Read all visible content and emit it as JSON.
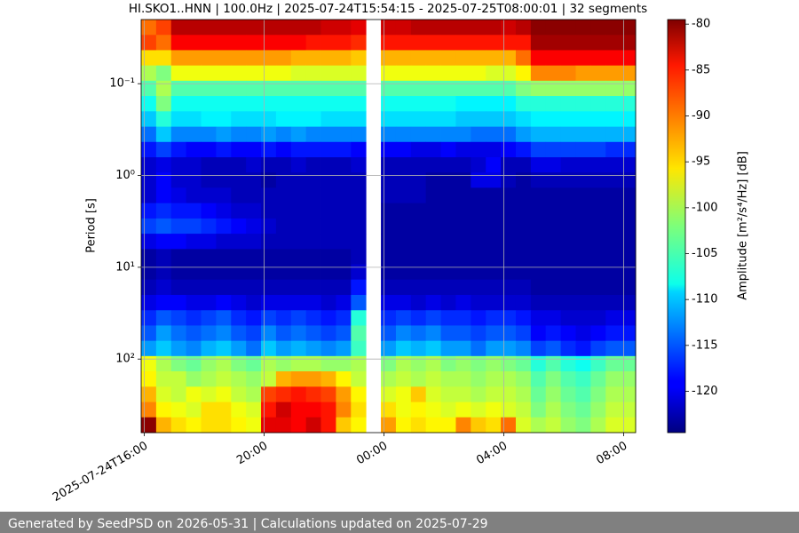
{
  "chart_data": {
    "type": "heatmap",
    "title": "HI.SKO1..HNN | 100.0Hz | 2025-07-24T15:54:15 - 2025-07-25T08:00:01 | 32 segments",
    "y_label": "Period [s]",
    "colorbar_label": "Amplitude [m²/s⁴/Hz] [dB]",
    "colormap": "jet",
    "ylog": true,
    "yinverted": true,
    "grid": true,
    "x": [
      "2025-07-24T15:54",
      "2025-07-24T16:24",
      "2025-07-24T16:54",
      "2025-07-24T17:24",
      "2025-07-24T17:54",
      "2025-07-24T18:24",
      "2025-07-24T18:54",
      "2025-07-24T19:24",
      "2025-07-24T19:54",
      "2025-07-24T20:24",
      "2025-07-24T20:54",
      "2025-07-24T21:24",
      "2025-07-24T21:54",
      "2025-07-24T22:24",
      "2025-07-24T22:54",
      "2025-07-24T23:24",
      "2025-07-24T23:54",
      "2025-07-25T00:24",
      "2025-07-25T00:54",
      "2025-07-25T01:24",
      "2025-07-25T01:54",
      "2025-07-25T02:24",
      "2025-07-25T02:54",
      "2025-07-25T03:24",
      "2025-07-25T03:54",
      "2025-07-25T04:24",
      "2025-07-25T04:54",
      "2025-07-25T05:24",
      "2025-07-25T05:54",
      "2025-07-25T06:24",
      "2025-07-25T06:54",
      "2025-07-25T07:24",
      "2025-07-25T07:54",
      "2025-07-25T08:24"
    ],
    "xlim": [
      "2025-07-24T15:54",
      "2025-07-25T08:24"
    ],
    "xticks": [
      {
        "value": "2025-07-24T16:00",
        "label": "2025-07-24T16:00"
      },
      {
        "value": "2025-07-24T20:00",
        "label": "20:00"
      },
      {
        "value": "2025-07-25T00:00",
        "label": "00:00"
      },
      {
        "value": "2025-07-25T04:00",
        "label": "04:00"
      },
      {
        "value": "2025-07-25T08:00",
        "label": "08:00"
      }
    ],
    "y": [
      0.02,
      0.0294,
      0.0431,
      0.0633,
      0.0928,
      0.136,
      0.2,
      0.294,
      0.431,
      0.633,
      0.928,
      1.36,
      2,
      2.94,
      4.31,
      6.33,
      9.28,
      13.6,
      20,
      29.4,
      43.1,
      63.3,
      92.8,
      136,
      200,
      294,
      431,
      633
    ],
    "ylim": [
      0.02,
      633
    ],
    "yticks": [
      {
        "value": 0.1,
        "label": "10⁻¹"
      },
      {
        "value": 1,
        "label": "10⁰"
      },
      {
        "value": 10,
        "label": "10¹"
      },
      {
        "value": 100,
        "label": "10²"
      }
    ],
    "clim": [
      -124.5,
      -79.5
    ],
    "cticks": [
      -80,
      -85,
      -90,
      -95,
      -100,
      -105,
      -110,
      -115,
      -120
    ],
    "z": [
      [
        -90,
        -88,
        -82,
        -82,
        -82,
        -82,
        -82,
        -82,
        -82,
        -82,
        -82,
        -82,
        -83,
        -83,
        -84,
        null,
        -83,
        -83,
        -82,
        -82,
        -82,
        -82,
        -82,
        -82,
        -83,
        -82,
        -80,
        -80,
        -80,
        -80,
        -80,
        -80,
        -80
      ],
      [
        -88,
        -90,
        -85,
        -85,
        -85,
        -85,
        -85,
        -85,
        -85,
        -85,
        -85,
        -86,
        -86,
        -86,
        -87,
        null,
        -86,
        -86,
        -86,
        -86,
        -86,
        -86,
        -86,
        -86,
        -86,
        -86,
        -81,
        -81,
        -81,
        -81,
        -81,
        -81,
        -81
      ],
      [
        -95,
        -95,
        -92,
        -92,
        -92,
        -92,
        -92,
        -92,
        -92,
        -92,
        -93,
        -93,
        -93,
        -93,
        -94,
        null,
        -93,
        -93,
        -93,
        -93,
        -93,
        -93,
        -93,
        -93,
        -93,
        -90,
        -85,
        -85,
        -85,
        -85,
        -85,
        -85,
        -85
      ],
      [
        -100,
        -102,
        -97,
        -97,
        -97,
        -97,
        -97,
        -97,
        -97,
        -97,
        -98,
        -98,
        -98,
        -98,
        -98,
        null,
        -97,
        -97,
        -97,
        -97,
        -97,
        -97,
        -97,
        -98,
        -98,
        -96,
        -91,
        -91,
        -91,
        -92,
        -92,
        -92,
        -92
      ],
      [
        -104,
        -100,
        -104,
        -104,
        -104,
        -104,
        -104,
        -104,
        -104,
        -104,
        -104,
        -104,
        -104,
        -104,
        -104,
        null,
        -104,
        -104,
        -104,
        -104,
        -104,
        -104,
        -104,
        -104,
        -104,
        -102,
        -101,
        -101,
        -101,
        -101,
        -101,
        -101,
        -101
      ],
      [
        -107,
        -102,
        -107,
        -107,
        -107,
        -107,
        -107,
        -107,
        -107,
        -107,
        -107,
        -107,
        -107,
        -107,
        -107,
        null,
        -107,
        -107,
        -107,
        -107,
        -107,
        -108,
        -108,
        -108,
        -108,
        -106,
        -106,
        -106,
        -106,
        -106,
        -106,
        -106,
        -106
      ],
      [
        -110,
        -106,
        -109,
        -109,
        -108,
        -108,
        -109,
        -109,
        -109,
        -108,
        -108,
        -108,
        -109,
        -109,
        -109,
        null,
        -109,
        -109,
        -109,
        -109,
        -109,
        -110,
        -110,
        -110,
        -110,
        -109,
        -108,
        -108,
        -108,
        -108,
        -108,
        -108,
        -108
      ],
      [
        -114,
        -110,
        -113,
        -113,
        -113,
        -112,
        -113,
        -113,
        -112,
        -113,
        -112,
        -113,
        -113,
        -113,
        -113,
        null,
        -113,
        -113,
        -113,
        -113,
        -113,
        -113,
        -114,
        -114,
        -114,
        -112,
        -111,
        -111,
        -111,
        -111,
        -111,
        -111,
        -111
      ],
      [
        -118,
        -116,
        -118,
        -119,
        -119,
        -118,
        -119,
        -119,
        -118,
        -119,
        -118,
        -118,
        -118,
        -118,
        -119,
        null,
        -119,
        -119,
        -120,
        -120,
        -119,
        -120,
        -120,
        -120,
        -119,
        -118,
        -116,
        -116,
        -116,
        -116,
        -116,
        -117,
        -117
      ],
      [
        -121,
        -120,
        -121,
        -121,
        -122,
        -122,
        -122,
        -121,
        -122,
        -122,
        -121,
        -122,
        -122,
        -122,
        -121,
        null,
        -122,
        -122,
        -122,
        -122,
        -122,
        -122,
        -121,
        -119,
        -122,
        -122,
        -120,
        -120,
        -121,
        -121,
        -121,
        -121,
        -121
      ],
      [
        -121,
        -119,
        -121,
        -121,
        -122,
        -122,
        -122,
        -122,
        -123,
        -122,
        -122,
        -122,
        -122,
        -122,
        -122,
        null,
        -122,
        -122,
        -122,
        -123,
        -123,
        -123,
        -120,
        -120,
        -122,
        -123,
        -122,
        -122,
        -122,
        -122,
        -122,
        -122,
        -122
      ],
      [
        -121,
        -119,
        -120,
        -121,
        -121,
        -121,
        -122,
        -122,
        -122,
        -122,
        -122,
        -122,
        -122,
        -122,
        -122,
        null,
        -122,
        -122,
        -122,
        -123,
        -123,
        -123,
        -123,
        -123,
        -123,
        -123,
        -123,
        -123,
        -123,
        -123,
        -123,
        -123,
        -123
      ],
      [
        -118,
        -117,
        -118,
        -118,
        -119,
        -120,
        -121,
        -121,
        -122,
        -122,
        -122,
        -122,
        -122,
        -122,
        -122,
        null,
        -123,
        -123,
        -123,
        -123,
        -123,
        -123,
        -123,
        -123,
        -123,
        -123,
        -123,
        -123,
        -123,
        -123,
        -123,
        -123,
        -123
      ],
      [
        -116,
        -115,
        -116,
        -116,
        -117,
        -118,
        -119,
        -120,
        -121,
        -122,
        -122,
        -122,
        -122,
        -122,
        -122,
        null,
        -123,
        -123,
        -123,
        -123,
        -123,
        -123,
        -123,
        -123,
        -123,
        -123,
        -123,
        -123,
        -123,
        -123,
        -123,
        -123,
        -123
      ],
      [
        -120,
        -119,
        -119,
        -120,
        -120,
        -121,
        -121,
        -121,
        -122,
        -122,
        -122,
        -122,
        -122,
        -122,
        -122,
        null,
        -123,
        -123,
        -123,
        -123,
        -123,
        -123,
        -123,
        -123,
        -123,
        -123,
        -123,
        -123,
        -123,
        -123,
        -123,
        -123,
        -123
      ],
      [
        -123,
        -122,
        -123,
        -123,
        -123,
        -123,
        -123,
        -123,
        -123,
        -123,
        -123,
        -123,
        -123,
        -123,
        -122,
        null,
        -123,
        -123,
        -123,
        -123,
        -123,
        -123,
        -123,
        -123,
        -123,
        -123,
        -123,
        -123,
        -123,
        -123,
        -123,
        -123,
        -123
      ],
      [
        -123,
        -122,
        -123,
        -123,
        -123,
        -123,
        -123,
        -123,
        -123,
        -123,
        -123,
        -123,
        -123,
        -123,
        -121,
        null,
        -123,
        -123,
        -123,
        -123,
        -123,
        -123,
        -123,
        -123,
        -123,
        -123,
        -123,
        -123,
        -123,
        -123,
        -123,
        -123,
        -123
      ],
      [
        -122,
        -121,
        -122,
        -122,
        -122,
        -122,
        -122,
        -122,
        -122,
        -122,
        -122,
        -122,
        -122,
        -122,
        -118,
        null,
        -122,
        -122,
        -122,
        -122,
        -122,
        -122,
        -122,
        -122,
        -122,
        -122,
        -123,
        -123,
        -123,
        -123,
        -123,
        -123,
        -123
      ],
      [
        -120,
        -119,
        -119,
        -120,
        -120,
        -119,
        -120,
        -121,
        -120,
        -120,
        -120,
        -120,
        -121,
        -120,
        -115,
        null,
        -120,
        -120,
        -121,
        -120,
        -121,
        -120,
        -121,
        -121,
        -121,
        -121,
        -122,
        -122,
        -122,
        -122,
        -122,
        -122,
        -122
      ],
      [
        -117,
        -115,
        -116,
        -117,
        -116,
        -115,
        -117,
        -118,
        -116,
        -117,
        -116,
        -117,
        -118,
        -117,
        -106,
        null,
        -117,
        -116,
        -117,
        -116,
        -117,
        -117,
        -118,
        -117,
        -117,
        -118,
        -120,
        -120,
        -121,
        -121,
        -121,
        -120,
        -120
      ],
      [
        -115,
        -112,
        -114,
        -115,
        -114,
        -113,
        -115,
        -116,
        -113,
        -115,
        -114,
        -115,
        -116,
        -115,
        -104,
        null,
        -115,
        -113,
        -114,
        -113,
        -115,
        -115,
        -116,
        -115,
        -115,
        -116,
        -119,
        -118,
        -119,
        -120,
        -119,
        -118,
        -118
      ],
      [
        -112,
        -110,
        -112,
        -113,
        -111,
        -110,
        -112,
        -114,
        -110,
        -112,
        -111,
        -112,
        -113,
        -112,
        -105,
        null,
        -112,
        -110,
        -111,
        -110,
        -112,
        -112,
        -114,
        -112,
        -112,
        -113,
        -116,
        -115,
        -117,
        -118,
        -116,
        -115,
        -115
      ],
      [
        -97,
        -100,
        -102,
        -103,
        -101,
        -100,
        -102,
        -103,
        -100,
        -101,
        -100,
        -100,
        -101,
        -101,
        -100,
        null,
        -102,
        -100,
        -101,
        -100,
        -102,
        -101,
        -102,
        -101,
        -102,
        -103,
        -106,
        -104,
        -106,
        -107,
        -105,
        -103,
        -103
      ],
      [
        -96,
        -99,
        -99,
        -101,
        -100,
        -99,
        -100,
        -101,
        -99,
        -93,
        -92,
        -92,
        -93,
        -96,
        -99,
        null,
        -100,
        -99,
        -100,
        -99,
        -100,
        -100,
        -101,
        -100,
        -100,
        -101,
        -104,
        -102,
        -104,
        -105,
        -103,
        -101,
        -101
      ],
      [
        -93,
        -98,
        -99,
        -97,
        -98,
        -97,
        -99,
        -100,
        -88,
        -87,
        -86,
        -87,
        -88,
        -92,
        -96,
        null,
        -98,
        -97,
        -94,
        -98,
        -99,
        -99,
        -100,
        -99,
        -99,
        -100,
        -103,
        -101,
        -103,
        -104,
        -102,
        -100,
        -100
      ],
      [
        -91,
        -96,
        -97,
        -98,
        -95,
        -95,
        -97,
        -98,
        -86,
        -83,
        -85,
        -85,
        -86,
        -91,
        -95,
        null,
        -95,
        -97,
        -96,
        -97,
        -98,
        -97,
        -98,
        -97,
        -98,
        -99,
        -102,
        -100,
        -102,
        -103,
        -101,
        -99,
        -99
      ],
      [
        -80,
        -93,
        -95,
        -96,
        -95,
        -95,
        -96,
        -97,
        -84,
        -84,
        -85,
        -83,
        -86,
        -94,
        -96,
        null,
        -92,
        -96,
        -95,
        -96,
        -96,
        -91,
        -94,
        -95,
        -90,
        -98,
        -100,
        -99,
        -101,
        -102,
        -100,
        -98,
        -98
      ]
    ]
  },
  "footer": {
    "text": "Generated by SeedPSD on 2026-05-31 | Calculations updated on 2025-07-29"
  }
}
